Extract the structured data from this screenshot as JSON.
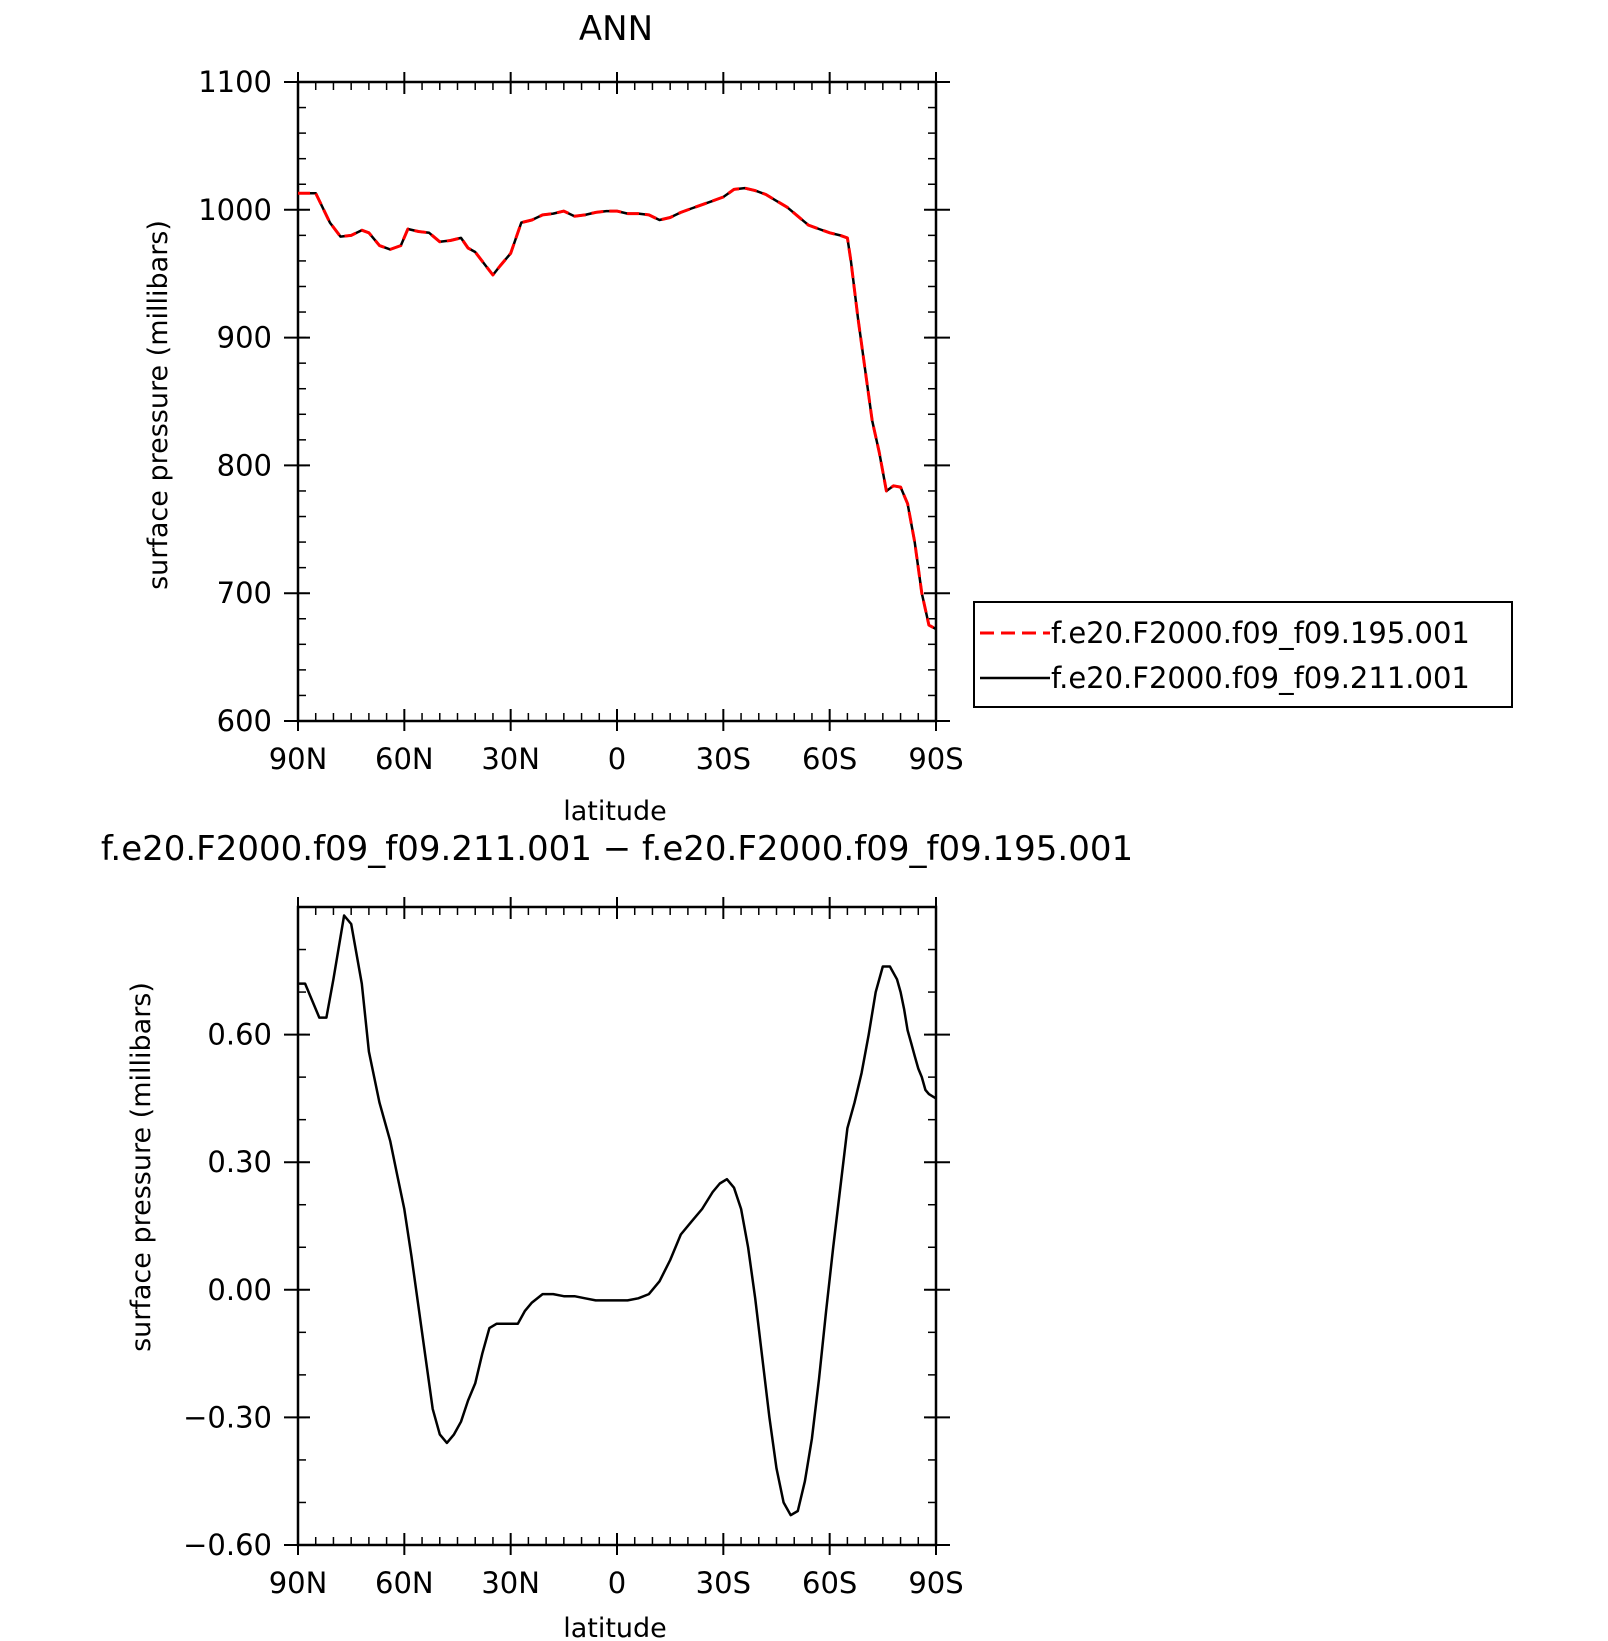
{
  "chart_data": [
    {
      "type": "line",
      "title": "ANN",
      "xlabel": "latitude",
      "ylabel": "surface pressure (millibars)",
      "x_ticks": [
        {
          "value": 90,
          "label": "90N"
        },
        {
          "value": 60,
          "label": "60N"
        },
        {
          "value": 30,
          "label": "30N"
        },
        {
          "value": 0,
          "label": "0"
        },
        {
          "value": -30,
          "label": "30S"
        },
        {
          "value": -60,
          "label": "60S"
        },
        {
          "value": -90,
          "label": "90S"
        }
      ],
      "y_ticks": [
        "600",
        "700",
        "800",
        "900",
        "1000",
        "1100"
      ],
      "xlim": [
        90,
        -90
      ],
      "ylim": [
        600,
        1100
      ],
      "legend": "right",
      "series": [
        {
          "name": "f.e20.F2000.f09_f09.195.001",
          "color": "#ff0000",
          "dash": "dashed",
          "x": [
            90,
            85,
            81,
            78,
            75,
            72,
            70,
            67,
            64,
            61,
            59,
            56,
            53,
            50,
            47,
            44,
            42,
            40,
            37,
            35,
            33,
            30,
            27,
            24,
            21,
            18,
            15,
            12,
            9,
            6,
            3,
            0,
            -3,
            -6,
            -9,
            -12,
            -15,
            -18,
            -21,
            -24,
            -27,
            -30,
            -33,
            -36,
            -39,
            -42,
            -45,
            -48,
            -51,
            -54,
            -57,
            -60,
            -63,
            -65,
            -66,
            -68,
            -70,
            -72,
            -74,
            -76,
            -78,
            -80,
            -82,
            -84,
            -86,
            -88,
            -90
          ],
          "values": [
            1013,
            1013,
            990,
            979,
            980,
            984,
            982,
            972,
            969,
            972,
            985,
            983,
            982,
            975,
            976,
            978,
            970,
            967,
            956,
            949,
            956,
            966,
            990,
            992,
            996,
            997,
            999,
            995,
            996,
            998,
            999,
            999,
            997,
            997,
            996,
            992,
            994,
            998,
            1001,
            1004,
            1007,
            1010,
            1016,
            1017,
            1015,
            1012,
            1007,
            1002,
            995,
            988,
            985,
            982,
            980,
            978,
            960,
            915,
            875,
            835,
            810,
            780,
            784,
            783,
            770,
            740,
            700,
            675,
            672
          ]
        },
        {
          "name": "f.e20.F2000.f09_f09.211.001",
          "color": "#000000",
          "dash": "solid",
          "x": [
            90,
            85,
            81,
            78,
            75,
            72,
            70,
            67,
            64,
            61,
            59,
            56,
            53,
            50,
            47,
            44,
            42,
            40,
            37,
            35,
            33,
            30,
            27,
            24,
            21,
            18,
            15,
            12,
            9,
            6,
            3,
            0,
            -3,
            -6,
            -9,
            -12,
            -15,
            -18,
            -21,
            -24,
            -27,
            -30,
            -33,
            -36,
            -39,
            -42,
            -45,
            -48,
            -51,
            -54,
            -57,
            -60,
            -63,
            -65,
            -66,
            -68,
            -70,
            -72,
            -74,
            -76,
            -78,
            -80,
            -82,
            -84,
            -86,
            -88,
            -90
          ],
          "values": [
            1013,
            1013,
            990,
            979,
            980,
            984,
            982,
            972,
            969,
            972,
            985,
            983,
            982,
            975,
            976,
            978,
            970,
            967,
            956,
            949,
            956,
            966,
            990,
            992,
            996,
            997,
            999,
            995,
            996,
            998,
            999,
            999,
            997,
            997,
            996,
            992,
            994,
            998,
            1001,
            1004,
            1007,
            1010,
            1016,
            1017,
            1015,
            1012,
            1007,
            1002,
            995,
            988,
            985,
            982,
            980,
            978,
            960,
            915,
            875,
            835,
            810,
            780,
            784,
            783,
            770,
            740,
            700,
            675,
            672
          ]
        }
      ]
    },
    {
      "type": "line",
      "title": "f.e20.F2000.f09_f09.211.001 − f.e20.F2000.f09_f09.195.001",
      "xlabel": "latitude",
      "ylabel": "surface pressure (millibars)",
      "x_ticks": [
        {
          "value": 90,
          "label": "90N"
        },
        {
          "value": 60,
          "label": "60N"
        },
        {
          "value": 30,
          "label": "30N"
        },
        {
          "value": 0,
          "label": "0"
        },
        {
          "value": -30,
          "label": "30S"
        },
        {
          "value": -60,
          "label": "60S"
        },
        {
          "value": -90,
          "label": "90S"
        }
      ],
      "y_ticks": [
        "−0.60",
        "−0.30",
        "0.00",
        "0.30",
        "0.60"
      ],
      "xlim": [
        90,
        -90
      ],
      "ylim": [
        -0.6,
        0.9
      ],
      "series": [
        {
          "color": "#000000",
          "dash": "solid",
          "x": [
            90,
            88,
            86,
            84,
            82,
            80,
            77,
            75,
            72,
            70,
            67,
            64,
            62,
            60,
            58,
            56,
            54,
            52,
            50,
            48,
            46,
            44,
            42,
            40,
            38,
            36,
            34,
            32,
            30,
            28,
            26,
            24,
            21,
            18,
            15,
            12,
            9,
            6,
            3,
            0,
            -3,
            -6,
            -9,
            -12,
            -15,
            -18,
            -21,
            -24,
            -27,
            -29,
            -31,
            -33,
            -35,
            -37,
            -39,
            -41,
            -43,
            -45,
            -47,
            -49,
            -51,
            -53,
            -55,
            -57,
            -59,
            -61,
            -63,
            -65,
            -67,
            -69,
            -71,
            -73,
            -75,
            -77,
            -79,
            -80,
            -81,
            -82,
            -83,
            -84,
            -85,
            -86,
            -87,
            -88,
            -89,
            -90
          ],
          "values": [
            0.72,
            0.72,
            0.68,
            0.64,
            0.64,
            0.73,
            0.88,
            0.86,
            0.72,
            0.56,
            0.44,
            0.35,
            0.27,
            0.19,
            0.08,
            -0.04,
            -0.16,
            -0.28,
            -0.34,
            -0.36,
            -0.34,
            -0.31,
            -0.26,
            -0.22,
            -0.15,
            -0.09,
            -0.08,
            -0.08,
            -0.08,
            -0.08,
            -0.05,
            -0.03,
            -0.01,
            -0.01,
            -0.015,
            -0.015,
            -0.02,
            -0.025,
            -0.025,
            -0.025,
            -0.025,
            -0.02,
            -0.01,
            0.02,
            0.07,
            0.13,
            0.16,
            0.19,
            0.23,
            0.25,
            0.26,
            0.24,
            0.19,
            0.1,
            -0.02,
            -0.16,
            -0.3,
            -0.42,
            -0.5,
            -0.53,
            -0.52,
            -0.45,
            -0.35,
            -0.21,
            -0.05,
            0.1,
            0.24,
            0.38,
            0.44,
            0.51,
            0.6,
            0.7,
            0.76,
            0.76,
            0.73,
            0.7,
            0.66,
            0.61,
            0.58,
            0.55,
            0.52,
            0.5,
            0.47,
            0.46,
            0.455,
            0.45
          ]
        }
      ]
    }
  ]
}
